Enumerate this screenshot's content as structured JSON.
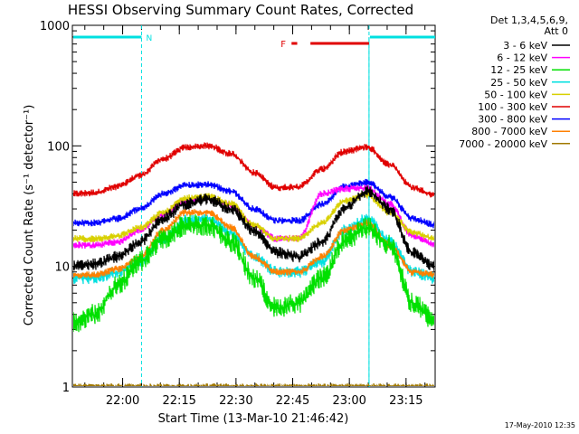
{
  "header": {
    "title": "HESSI Observing Summary Count Rates, Corrected",
    "date_stamp": "17-May-2010 12:35"
  },
  "legend": {
    "heading_1": "Det 1,3,4,5,6,9,",
    "heading_2": "Att 0",
    "entries": [
      {
        "label": "3 - 6 keV",
        "color": "#000000"
      },
      {
        "label": "6 - 12 keV",
        "color": "#ff00ff"
      },
      {
        "label": "12 - 25 keV",
        "color": "#00e000"
      },
      {
        "label": "25 - 50 keV",
        "color": "#00e0e0"
      },
      {
        "label": "50 - 100 keV",
        "color": "#d8d000"
      },
      {
        "label": "100 - 300 keV",
        "color": "#e00000"
      },
      {
        "label": "300 - 800 keV",
        "color": "#0000ff"
      },
      {
        "label": "800 - 7000 keV",
        "color": "#ff8000"
      },
      {
        "label": "7000 - 20000 keV",
        "color": "#a07800"
      }
    ]
  },
  "chart_data": {
    "type": "line",
    "title": "HESSI Observing Summary Count Rates, Corrected",
    "xlabel": "Start Time (13-Mar-10 21:46:42)",
    "ylabel": "Corrected Count Rate (s⁻¹ detector⁻¹)",
    "y_scale": "log",
    "ylim": [
      1,
      1000
    ],
    "xlim_minutes_after_start": [
      0,
      96
    ],
    "y_ticks": [
      {
        "value": 1,
        "label": "1"
      },
      {
        "value": 10,
        "label": "10"
      },
      {
        "value": 100,
        "label": "100"
      },
      {
        "value": 1000,
        "label": "1000"
      }
    ],
    "x_ticks": [
      {
        "t": 13.3,
        "label": "22:00"
      },
      {
        "t": 28.3,
        "label": "22:15"
      },
      {
        "t": 43.3,
        "label": "22:30"
      },
      {
        "t": 58.3,
        "label": "22:45"
      },
      {
        "t": 73.3,
        "label": "23:00"
      },
      {
        "t": 88.3,
        "label": "23:15"
      }
    ],
    "time_labels_minutes": [
      0,
      6,
      12,
      18,
      24,
      30,
      36,
      42,
      48,
      54,
      60,
      66,
      72,
      78,
      84,
      90,
      96
    ],
    "series": [
      {
        "name": "3 - 6 keV",
        "color": "#000000",
        "values": [
          10,
          10.5,
          12,
          16,
          25,
          33,
          36,
          30,
          20,
          13,
          12,
          16,
          30,
          42,
          30,
          13,
          10
        ]
      },
      {
        "name": "6 - 12 keV",
        "color": "#ff00ff",
        "values": [
          15,
          15,
          16,
          20,
          27,
          35,
          37,
          32,
          22,
          17,
          17,
          40,
          44,
          45,
          33,
          18,
          15
        ]
      },
      {
        "name": "12 - 25 keV",
        "color": "#00e000",
        "values": [
          3.4,
          4,
          7,
          11,
          17,
          22,
          22,
          16,
          8,
          4.5,
          5,
          8,
          16,
          21,
          15,
          5,
          3.5
        ]
      },
      {
        "name": "25 - 50 keV",
        "color": "#00e0e0",
        "values": [
          8,
          8,
          9,
          11,
          17,
          24,
          25,
          19,
          12,
          9,
          9,
          11,
          20,
          25,
          16,
          9,
          8
        ]
      },
      {
        "name": "50 - 100 keV",
        "color": "#d8d000",
        "values": [
          17,
          17,
          18,
          21,
          28,
          37,
          38,
          33,
          22,
          17,
          17,
          23,
          35,
          39,
          28,
          19,
          17
        ]
      },
      {
        "name": "100 - 300 keV",
        "color": "#e00000",
        "values": [
          40,
          41,
          46,
          57,
          78,
          97,
          100,
          86,
          60,
          45,
          46,
          64,
          90,
          98,
          70,
          45,
          39
        ]
      },
      {
        "name": "300 - 800 keV",
        "color": "#0000ff",
        "values": [
          23,
          23,
          25,
          30,
          40,
          47,
          48,
          42,
          30,
          24,
          24,
          33,
          46,
          50,
          38,
          25,
          22
        ]
      },
      {
        "name": "800 - 7000 keV",
        "color": "#ff8000",
        "values": [
          8.5,
          8.5,
          9.5,
          12,
          20,
          28,
          28,
          21,
          12,
          9,
          9,
          12,
          20,
          23,
          15,
          9,
          8.5
        ]
      },
      {
        "name": "7000 - 20000 keV",
        "color": "#a07800",
        "values": [
          1,
          1,
          1,
          1,
          1,
          1,
          1,
          1,
          1,
          1,
          1,
          1,
          1,
          1,
          1,
          1,
          1
        ]
      }
    ],
    "annotations": {
      "night_label": "N",
      "flare_label": "F",
      "night_intervals": [
        [
          0,
          18.3
        ],
        [
          78.5,
          96
        ]
      ],
      "flare_intervals": [
        [
          58,
          59.5
        ],
        [
          63,
          78.5
        ]
      ],
      "night_color": "#00e0e0",
      "flare_color": "#e00000"
    }
  }
}
